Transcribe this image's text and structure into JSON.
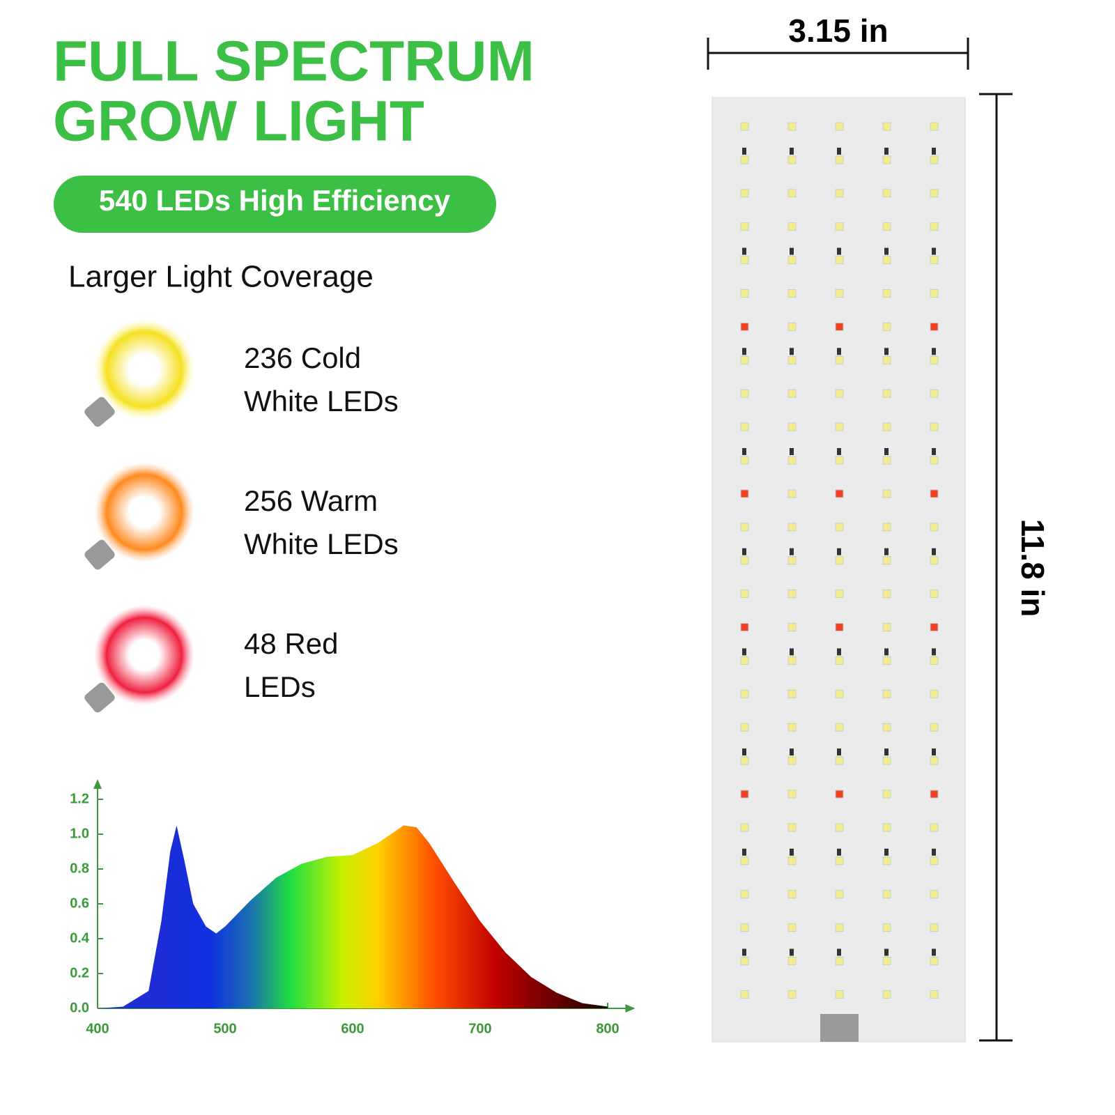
{
  "header": {
    "title_lines": [
      "FULL SPECTRUM",
      "GROW LIGHT"
    ],
    "badge": "540 LEDs High Efficiency",
    "subtitle": "Larger Light Coverage"
  },
  "features": [
    {
      "lines": [
        "236 Cold",
        "White LEDs"
      ]
    },
    {
      "lines": [
        "256 Warm",
        "White LEDs"
      ]
    },
    {
      "lines": [
        "48 Red",
        "LEDs"
      ]
    }
  ],
  "dimensions": {
    "width": "3.15 in",
    "height": "11.8 in"
  },
  "chart_data": {
    "type": "area",
    "x": [
      400,
      420,
      440,
      450,
      457,
      462,
      468,
      475,
      485,
      493,
      500,
      520,
      540,
      560,
      580,
      600,
      620,
      640,
      650,
      660,
      680,
      700,
      720,
      740,
      760,
      780,
      800
    ],
    "values": [
      0,
      0.01,
      0.1,
      0.5,
      0.9,
      1.05,
      0.85,
      0.6,
      0.47,
      0.43,
      0.47,
      0.62,
      0.75,
      0.83,
      0.87,
      0.88,
      0.95,
      1.05,
      1.04,
      0.95,
      0.72,
      0.5,
      0.32,
      0.18,
      0.09,
      0.03,
      0.01
    ],
    "xlim": [
      400,
      815
    ],
    "xticks": [
      400,
      500,
      600,
      700,
      800
    ],
    "ylim": [
      0,
      1.3
    ],
    "yticks": [
      {
        "value": 0,
        "label": "0.0"
      },
      0.2,
      0.4,
      0.6,
      0.8,
      {
        "value": 1,
        "label": "1.0"
      },
      1.2
    ]
  }
}
